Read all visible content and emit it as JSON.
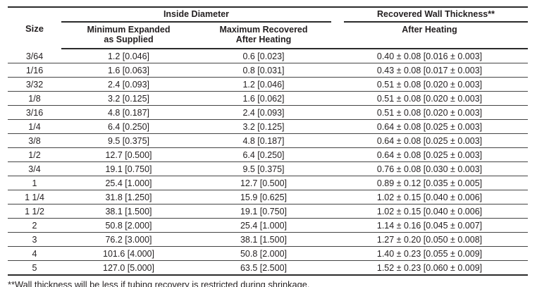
{
  "table": {
    "header": {
      "size": "Size",
      "group_inside_diameter": "Inside Diameter",
      "group_wall_thickness": "Recovered Wall Thickness**",
      "min_expanded_line1": "Minimum Expanded",
      "min_expanded_line2": "as Supplied",
      "max_recovered_line1": "Maximum Recovered",
      "max_recovered_line2": "After Heating",
      "wall_after_heating": "After Heating"
    },
    "rows": [
      {
        "size": "3/64",
        "min_expanded": "1.2 [0.046]",
        "max_recovered": "0.6 [0.023]",
        "wall_thickness": "0.40 ± 0.08 [0.016 ± 0.003]"
      },
      {
        "size": "1/16",
        "min_expanded": "1.6 [0.063]",
        "max_recovered": "0.8 [0.031]",
        "wall_thickness": "0.43 ± 0.08 [0.017 ± 0.003]"
      },
      {
        "size": "3/32",
        "min_expanded": "2.4 [0.093]",
        "max_recovered": "1.2 [0.046]",
        "wall_thickness": "0.51 ± 0.08 [0.020 ± 0.003]"
      },
      {
        "size": "1/8",
        "min_expanded": "3.2 [0.125]",
        "max_recovered": "1.6 [0.062]",
        "wall_thickness": "0.51 ± 0.08 [0.020 ± 0.003]"
      },
      {
        "size": "3/16",
        "min_expanded": "4.8 [0.187]",
        "max_recovered": "2.4 [0.093]",
        "wall_thickness": "0.51 ± 0.08 [0.020 ± 0.003]"
      },
      {
        "size": "1/4",
        "min_expanded": "6.4 [0.250]",
        "max_recovered": "3.2 [0.125]",
        "wall_thickness": "0.64 ± 0.08 [0.025 ± 0.003]"
      },
      {
        "size": "3/8",
        "min_expanded": "9.5 [0.375]",
        "max_recovered": "4.8 [0.187]",
        "wall_thickness": "0.64 ± 0.08 [0.025 ± 0.003]"
      },
      {
        "size": "1/2",
        "min_expanded": "12.7 [0.500]",
        "max_recovered": "6.4 [0.250]",
        "wall_thickness": "0.64 ± 0.08 [0.025 ± 0.003]"
      },
      {
        "size": "3/4",
        "min_expanded": "19.1 [0.750]",
        "max_recovered": "9.5 [0.375]",
        "wall_thickness": "0.76 ± 0.08 [0.030 ± 0.003]"
      },
      {
        "size": "1",
        "min_expanded": "25.4 [1.000]",
        "max_recovered": "12.7 [0.500]",
        "wall_thickness": "0.89 ± 0.12 [0.035 ± 0.005]"
      },
      {
        "size": "1 1/4",
        "min_expanded": "31.8 [1.250]",
        "max_recovered": "15.9 [0.625]",
        "wall_thickness": "1.02 ± 0.15 [0.040 ± 0.006]"
      },
      {
        "size": "1 1/2",
        "min_expanded": "38.1 [1.500]",
        "max_recovered": "19.1 [0.750]",
        "wall_thickness": "1.02 ± 0.15 [0.040 ± 0.006]"
      },
      {
        "size": "2",
        "min_expanded": "50.8 [2.000]",
        "max_recovered": "25.4 [1.000]",
        "wall_thickness": "1.14 ± 0.16 [0.045 ± 0.007]"
      },
      {
        "size": "3",
        "min_expanded": "76.2 [3.000]",
        "max_recovered": "38.1 [1.500]",
        "wall_thickness": "1.27 ± 0.20 [0.050 ± 0.008]"
      },
      {
        "size": "4",
        "min_expanded": "101.6 [4.000]",
        "max_recovered": "50.8 [2.000]",
        "wall_thickness": "1.40 ± 0.23 [0.055 ± 0.009]"
      },
      {
        "size": "5",
        "min_expanded": "127.0 [5.000]",
        "max_recovered": "63.5 [2.500]",
        "wall_thickness": "1.52 ± 0.23 [0.060 ± 0.009]"
      }
    ],
    "footnote": "**Wall thickness will be less if tubing recovery is restricted during shrinkage."
  }
}
